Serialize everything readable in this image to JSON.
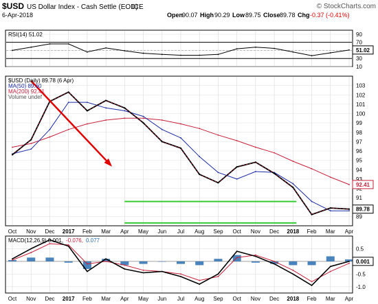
{
  "header": {
    "symbol": "$USD",
    "name": "US Dollar Index - Cash Settle (EOD)",
    "exchange": "ICE",
    "copyright": "© StockCharts.com",
    "date": "6-Apr-2018",
    "ohlc": {
      "open_label": "Open",
      "open": "90.07",
      "high_label": "High",
      "high": "90.29",
      "low_label": "Low",
      "low": "89.75",
      "close_label": "Close",
      "close": "89.78",
      "chg_label": "Chg",
      "chg": "-0.37 (-0.41%)"
    },
    "chg_color": "#e00000"
  },
  "chart_data": [
    {
      "type": "line",
      "panel": "rsi",
      "legend": [
        {
          "text": "RSI(14) 51.02",
          "color": "#000000"
        }
      ],
      "ylim": [
        10,
        100
      ],
      "y_ticks": [
        "90",
        "70",
        "50",
        "30",
        "10"
      ],
      "reference_lines": [
        70,
        30
      ],
      "last_value_badge": "51.02",
      "series": [
        {
          "name": "RSI(14)",
          "color": "#000000",
          "x": [
            "Oct",
            "Nov",
            "Dec",
            "2017",
            "Feb",
            "Mar",
            "Apr",
            "May",
            "Jun",
            "Jul",
            "Aug",
            "Sep",
            "Oct",
            "Nov",
            "Dec",
            "2018",
            "Feb",
            "Mar",
            "Apr"
          ],
          "values": [
            50,
            58,
            66,
            66,
            46,
            56,
            49,
            43,
            40,
            38,
            38,
            40,
            54,
            58,
            55,
            46,
            37,
            44,
            51
          ]
        }
      ]
    },
    {
      "type": "line",
      "panel": "price",
      "legend": [
        {
          "text": "$USD (Daily) 89.78 (6 Apr)",
          "color": "#000000"
        },
        {
          "text": "MA(50) 89.60",
          "color": "#1a2aa6"
        },
        {
          "text": "MA(200) 92.41",
          "color": "#c8203a"
        },
        {
          "text": "Volume undef",
          "color": "#555555"
        }
      ],
      "ylim": [
        88,
        104
      ],
      "y_ticks": [
        "103",
        "102",
        "101",
        "100",
        "99",
        "98",
        "97",
        "96",
        "95",
        "94",
        "93",
        "92",
        "91",
        "90",
        "89"
      ],
      "last_value_badges": [
        {
          "text": "92.41",
          "color": "#c8203a"
        },
        {
          "text": "89.78",
          "color": "#000000"
        }
      ],
      "x_categories": [
        "Oct",
        "Nov",
        "Dec",
        "2017",
        "Feb",
        "Mar",
        "Apr",
        "May",
        "Jun",
        "Jul",
        "Aug",
        "Sep",
        "Oct",
        "Nov",
        "Dec",
        "2018",
        "Feb",
        "Mar",
        "Apr"
      ],
      "series": [
        {
          "name": "$USD",
          "color": "#c8203a",
          "values": [
            95.6,
            97.2,
            101.3,
            102.3,
            100.3,
            101.4,
            100.6,
            99.0,
            97.0,
            96.3,
            93.5,
            92.6,
            94.3,
            94.8,
            93.6,
            92.1,
            89.2,
            89.9,
            89.78
          ]
        },
        {
          "name": "MA(50)",
          "color": "#1a2aa6",
          "values": [
            95.7,
            96.2,
            98.3,
            101.2,
            101.2,
            100.6,
            100.3,
            99.7,
            98.3,
            97.4,
            95.4,
            93.7,
            93.0,
            93.8,
            93.7,
            92.5,
            90.6,
            89.6,
            89.6
          ]
        },
        {
          "name": "MA(200)",
          "color": "#c8203a",
          "values": [
            96.4,
            96.8,
            97.5,
            98.3,
            98.9,
            99.3,
            99.5,
            99.5,
            99.3,
            98.9,
            98.4,
            97.7,
            97.1,
            96.4,
            95.8,
            94.9,
            94.1,
            93.2,
            92.41
          ]
        }
      ],
      "annotations": [
        {
          "type": "trendline",
          "color": "#e00000",
          "from": [
            "Nov",
            103.5
          ],
          "to": [
            "Apr",
            92.9
          ]
        },
        {
          "type": "channel",
          "color": "#33cc33",
          "upper": 90.6,
          "lower": 88.3,
          "from": "2018",
          "to": "Apr"
        }
      ]
    },
    {
      "type": "line",
      "panel": "macd",
      "legend": [
        {
          "text": "MACD(12,26,9) 0.001,",
          "color": "#000000"
        },
        {
          "text": "-0.076,",
          "color": "#c8203a"
        },
        {
          "text": "0.077",
          "color": "#2c6fb0"
        }
      ],
      "ylim": [
        -1.25,
        1.0
      ],
      "y_ticks": [
        "0.5",
        "0.0",
        "-0.5",
        "-1.0"
      ],
      "last_value_badge": "0.001",
      "x_categories": [
        "Oct",
        "Nov",
        "Dec",
        "2017",
        "Feb",
        "Mar",
        "Apr",
        "May",
        "Jun",
        "Jul",
        "Aug",
        "Sep",
        "Oct",
        "Nov",
        "Dec",
        "2018",
        "Feb",
        "Mar",
        "Apr"
      ],
      "series": [
        {
          "name": "MACD",
          "color": "#000000",
          "values": [
            0.1,
            0.5,
            0.85,
            0.6,
            -0.4,
            0.1,
            -0.3,
            -0.45,
            -0.4,
            -0.6,
            -0.9,
            -0.5,
            0.4,
            0.2,
            -0.1,
            -0.5,
            -0.95,
            -0.2,
            0.001
          ]
        },
        {
          "name": "Signal",
          "color": "#c8203a",
          "values": [
            0.05,
            0.35,
            0.7,
            0.65,
            -0.1,
            0.0,
            -0.15,
            -0.35,
            -0.4,
            -0.5,
            -0.75,
            -0.6,
            0.15,
            0.25,
            0.0,
            -0.35,
            -0.8,
            -0.4,
            -0.076
          ]
        },
        {
          "name": "Histogram",
          "color": "#2c6fb0",
          "values": [
            0.05,
            0.15,
            0.15,
            -0.05,
            -0.3,
            0.1,
            -0.15,
            -0.1,
            0.0,
            -0.1,
            -0.15,
            0.1,
            0.25,
            -0.05,
            -0.1,
            -0.15,
            -0.15,
            0.2,
            0.077
          ]
        }
      ]
    }
  ]
}
